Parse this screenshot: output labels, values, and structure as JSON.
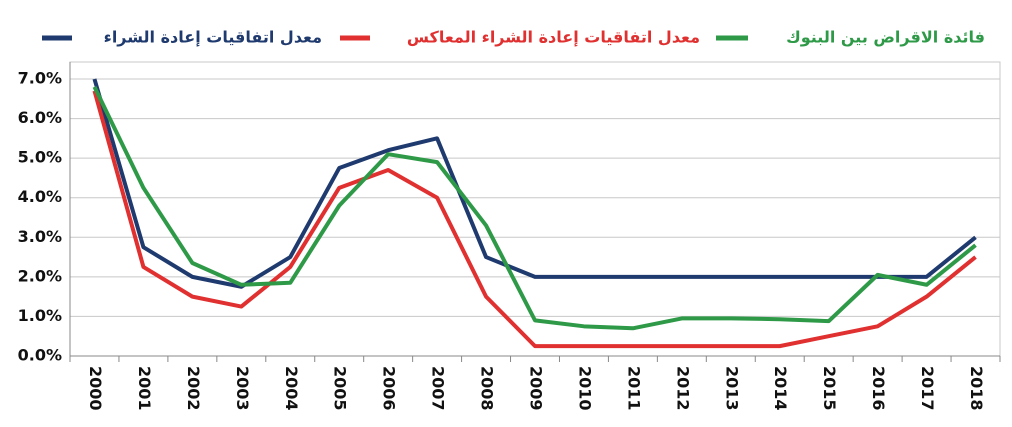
{
  "chart_data": {
    "type": "line",
    "categories": [
      "2000",
      "2001",
      "2002",
      "2003",
      "2004",
      "2005",
      "2006",
      "2007",
      "2008",
      "2009",
      "2010",
      "2011",
      "2012",
      "2013",
      "2014",
      "2015",
      "2016",
      "2017",
      "2018"
    ],
    "series": [
      {
        "name": "معدل اتفاقيات إعادة الشراء",
        "color": "#1f3a6e",
        "values": [
          7.0,
          2.75,
          2.0,
          1.75,
          2.5,
          4.75,
          5.2,
          5.5,
          2.5,
          2.0,
          2.0,
          2.0,
          2.0,
          2.0,
          2.0,
          2.0,
          2.0,
          2.0,
          3.0
        ]
      },
      {
        "name": "معدل اتفاقيات إعادة الشراء المعاكس",
        "color": "#e03030",
        "values": [
          6.7,
          2.25,
          1.5,
          1.25,
          2.25,
          4.25,
          4.7,
          4.0,
          1.5,
          0.25,
          0.25,
          0.25,
          0.25,
          0.25,
          0.25,
          0.5,
          0.75,
          1.5,
          2.5
        ]
      },
      {
        "name": "فائدة الاقراض بين البنوك",
        "color": "#2e9a48",
        "values": [
          6.8,
          4.25,
          2.35,
          1.8,
          1.85,
          3.8,
          5.1,
          4.9,
          3.3,
          0.9,
          0.75,
          0.7,
          0.95,
          0.95,
          0.93,
          0.88,
          2.05,
          1.8,
          2.8
        ]
      }
    ],
    "ylim": [
      0,
      7
    ],
    "yticks": [
      {
        "value": 0,
        "label": "0.0%"
      },
      {
        "value": 1,
        "label": "1.0%"
      },
      {
        "value": 2,
        "label": "2.0%"
      },
      {
        "value": 3,
        "label": "3.0%"
      },
      {
        "value": 4,
        "label": "4.0%"
      },
      {
        "value": 5,
        "label": "5.0%"
      },
      {
        "value": 6,
        "label": "6.0%"
      },
      {
        "value": 7,
        "label": "7.0%"
      }
    ],
    "grid": true
  }
}
